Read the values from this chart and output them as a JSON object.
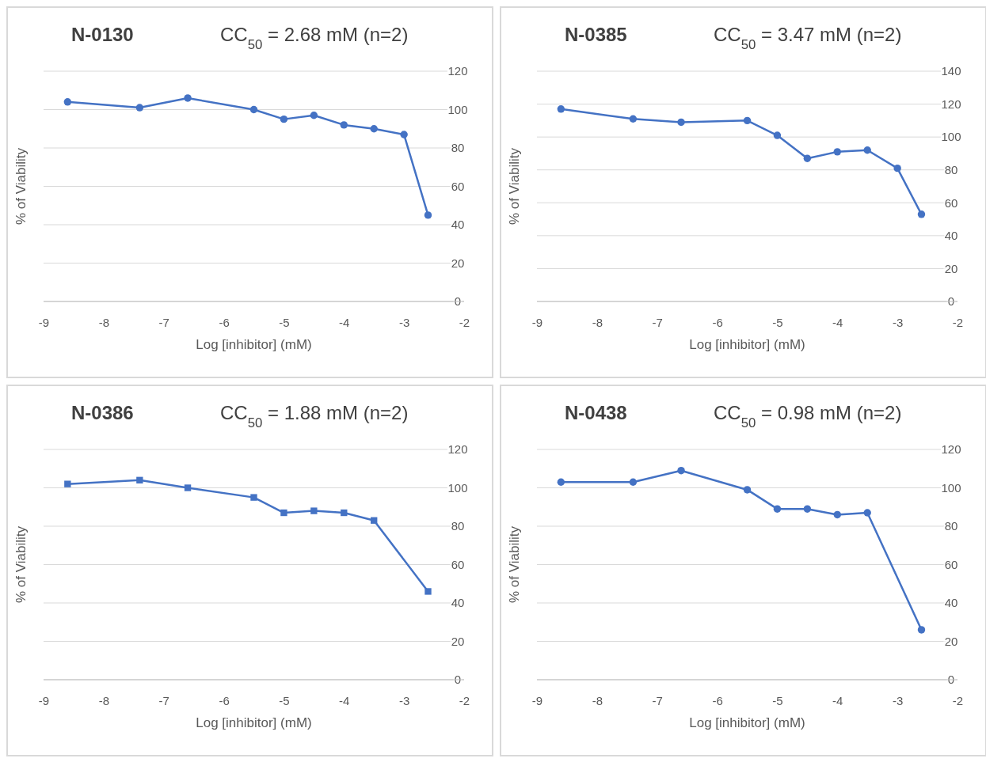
{
  "chart_data": [
    {
      "type": "line",
      "title": "N-0130",
      "subtitle": "CC$_{50}$ = 2.68 mM (n=2)",
      "xlabel": "Log [inhibitor] (mM)",
      "ylabel": "% of Viability",
      "x": [
        -8.6,
        -7.4,
        -6.6,
        -5.5,
        -5,
        -4.5,
        -4,
        -3.5,
        -3,
        -2.6
      ],
      "series": [
        {
          "color": "#4472c4",
          "values": [
            104,
            101,
            106,
            100,
            95,
            97,
            92,
            90,
            87,
            45
          ]
        }
      ],
      "xlim": [
        -9,
        -2
      ],
      "xticks": [
        -9,
        -8,
        -7,
        -6,
        -5,
        -4,
        -3,
        -2
      ],
      "ylim": [
        0,
        120
      ],
      "yticks": [
        0,
        20,
        40,
        60,
        80,
        100,
        120
      ],
      "grid": "y",
      "marker": "circle"
    },
    {
      "type": "line",
      "title": "N-0385",
      "subtitle": "CC$_{50}$ = 3.47 mM (n=2)",
      "xlabel": "Log [inhibitor] (mM)",
      "ylabel": "% of Viability",
      "x": [
        -8.6,
        -7.4,
        -6.6,
        -5.5,
        -5,
        -4.5,
        -4,
        -3.5,
        -3,
        -2.6
      ],
      "series": [
        {
          "color": "#4472c4",
          "values": [
            117,
            111,
            109,
            110,
            101,
            87,
            91,
            92,
            81,
            53
          ]
        }
      ],
      "xlim": [
        -9,
        -2
      ],
      "xticks": [
        -9,
        -8,
        -7,
        -6,
        -5,
        -4,
        -3,
        -2
      ],
      "ylim": [
        0,
        140
      ],
      "yticks": [
        0,
        20,
        40,
        60,
        80,
        100,
        120,
        140
      ],
      "grid": "y",
      "marker": "circle"
    },
    {
      "type": "line",
      "title": "N-0386",
      "subtitle": "CC$_{50}$ = 1.88 mM (n=2)",
      "xlabel": "Log [inhibitor] (mM)",
      "ylabel": "% of Viability",
      "x": [
        -8.6,
        -7.4,
        -6.6,
        -5.5,
        -5,
        -4.5,
        -4,
        -3.5,
        -2.6
      ],
      "series": [
        {
          "color": "#4472c4",
          "values": [
            102,
            104,
            100,
            95,
            87,
            88,
            87,
            83,
            46
          ]
        }
      ],
      "xlim": [
        -9,
        -2
      ],
      "xticks": [
        -9,
        -8,
        -7,
        -6,
        -5,
        -4,
        -3,
        -2
      ],
      "ylim": [
        0,
        120
      ],
      "yticks": [
        0,
        20,
        40,
        60,
        80,
        100,
        120
      ],
      "grid": "y",
      "marker": "square"
    },
    {
      "type": "line",
      "title": "N-0438",
      "subtitle": "CC$_{50}$ = 0.98 mM (n=2)",
      "xlabel": "Log [inhibitor] (mM)",
      "ylabel": "% of Viability",
      "x": [
        -8.6,
        -7.4,
        -6.6,
        -5.5,
        -5,
        -4.5,
        -4,
        -3.5,
        -2.6
      ],
      "series": [
        {
          "color": "#4472c4",
          "values": [
            103,
            103,
            109,
            99,
            89,
            89,
            86,
            87,
            26
          ]
        }
      ],
      "xlim": [
        -9,
        -2
      ],
      "xticks": [
        -9,
        -8,
        -7,
        -6,
        -5,
        -4,
        -3,
        -2
      ],
      "ylim": [
        0,
        120
      ],
      "yticks": [
        0,
        20,
        40,
        60,
        80,
        100,
        120
      ],
      "grid": "y",
      "marker": "circle"
    }
  ]
}
